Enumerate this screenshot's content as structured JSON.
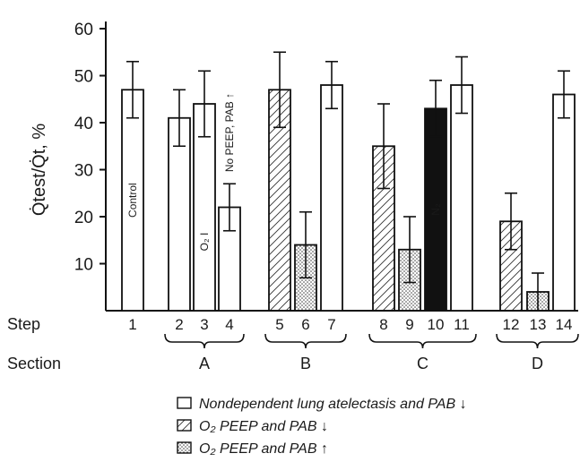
{
  "chart_data": {
    "type": "bar",
    "ylabel": "Q̇test/Q̇t, %",
    "ylim": [
      0,
      60
    ],
    "yticks": [
      10,
      20,
      30,
      40,
      50,
      60
    ],
    "step_axis_label": "Step",
    "section_axis_label": "Section",
    "bars": [
      {
        "step": "1",
        "value": 47,
        "err": 6,
        "style": "open",
        "label": "Control"
      },
      {
        "step": "2",
        "value": 41,
        "err": 6,
        "style": "open"
      },
      {
        "step": "3",
        "value": 44,
        "err": 7,
        "style": "open",
        "label": "O₂ I"
      },
      {
        "step": "4",
        "value": 22,
        "err": 5,
        "style": "open",
        "label": "No PEEP, PAB ↑"
      },
      {
        "step": "5",
        "value": 47,
        "err": 8,
        "style": "hatch"
      },
      {
        "step": "6",
        "value": 14,
        "err": 7,
        "style": "dots"
      },
      {
        "step": "7",
        "value": 48,
        "err": 5,
        "style": "open"
      },
      {
        "step": "8",
        "value": 35,
        "err": 9,
        "style": "hatch"
      },
      {
        "step": "9",
        "value": 13,
        "err": 7,
        "style": "dots"
      },
      {
        "step": "10",
        "value": 43,
        "err": 6,
        "style": "solid",
        "label": "N₂"
      },
      {
        "step": "11",
        "value": 48,
        "err": 6,
        "style": "open"
      },
      {
        "step": "12",
        "value": 19,
        "err": 6,
        "style": "hatch"
      },
      {
        "step": "13",
        "value": 4,
        "err": 4,
        "style": "dots"
      },
      {
        "step": "14",
        "value": 46,
        "err": 5,
        "style": "open"
      }
    ],
    "sections": [
      {
        "name": "A",
        "steps": [
          "2",
          "4"
        ]
      },
      {
        "name": "B",
        "steps": [
          "5",
          "7"
        ]
      },
      {
        "name": "C",
        "steps": [
          "8",
          "11"
        ]
      },
      {
        "name": "D",
        "steps": [
          "12",
          "14"
        ]
      }
    ],
    "legend": [
      {
        "label": "Nondependent lung atelectasis and PAB ↓",
        "style": "open"
      },
      {
        "label": "O₂ PEEP and PAB ↓",
        "style": "hatch"
      },
      {
        "label": "O₂ PEEP and PAB ↑",
        "style": "dots"
      }
    ]
  }
}
